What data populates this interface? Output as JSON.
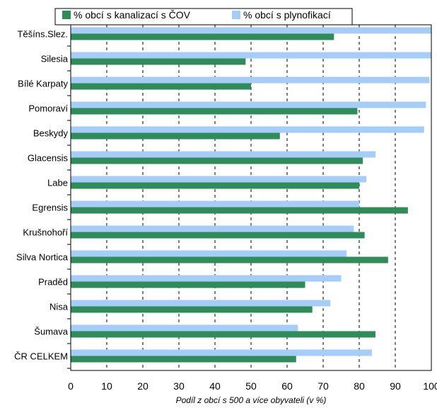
{
  "chart_data": {
    "type": "bar",
    "orientation": "horizontal",
    "title": "",
    "xlabel": "Podíl z obcí s 500 a více obyvateli (v %)",
    "ylabel": "",
    "xlim": [
      0,
      100
    ],
    "x_ticks": [
      "0",
      "10",
      "20",
      "30",
      "40",
      "50",
      "60",
      "70",
      "80",
      "90",
      "100"
    ],
    "grid": "vertical",
    "legend_position": "top",
    "categories": [
      "Těšíns.Slez.",
      "Silesia",
      "Bílé Karpaty",
      "Pomoraví",
      "Beskydy",
      "Glacensis",
      "Labe",
      "Egrensis",
      "Krušnohoří",
      "Silva Nortica",
      "Praděd",
      "Nisa",
      "Šumava",
      "ČR CELKEM"
    ],
    "series": [
      {
        "name": "% obcí s plynofikací",
        "color": "#a6cdf7",
        "values": [
          100,
          100,
          99.5,
          98.5,
          98,
          84.5,
          82,
          80,
          78.5,
          76.5,
          75,
          72,
          63,
          83.5
        ]
      },
      {
        "name": "% obcí s kanalizací s ČOV",
        "color": "#2f8b57",
        "values": [
          73,
          48.5,
          50,
          79.5,
          58,
          81,
          80,
          93.5,
          81.5,
          88,
          65,
          67,
          84.5,
          62.5
        ]
      }
    ]
  }
}
